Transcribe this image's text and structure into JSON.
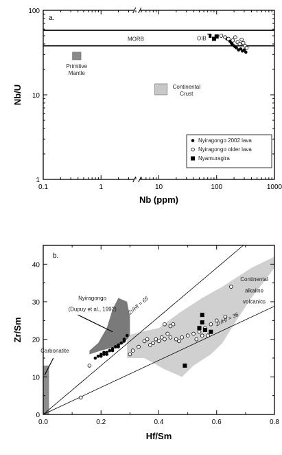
{
  "chart_data": [
    {
      "panel": "a.",
      "type": "scatter",
      "x_scale": "log",
      "y_scale": "log",
      "xlabel": "Nb (ppm)",
      "ylabel": "Nb/U",
      "xlim": [
        0.1,
        1000
      ],
      "ylim": [
        1,
        100
      ],
      "x_ticks": [
        "0.1",
        "1",
        "10",
        "100",
        "1000"
      ],
      "y_ticks": [
        "1",
        "10",
        "100"
      ],
      "bands": [
        {
          "label": "MORB",
          "y_range": [
            38,
            58
          ]
        }
      ],
      "regions": [
        {
          "label": "Primitive Mantle",
          "x_range": [
            0.32,
            0.45
          ],
          "y_range": [
            26,
            32
          ],
          "color": "#8a8a8a"
        },
        {
          "label": "Continental Crust",
          "x_range": [
            8.5,
            14
          ],
          "y_range": [
            10,
            13.5
          ],
          "color": "#c8c8c8"
        }
      ],
      "annotations": [
        {
          "text": "MORB",
          "x": 4,
          "y": 46
        },
        {
          "text": "OIB",
          "x": 55,
          "y": 47
        }
      ],
      "legend": {
        "placement": "bottom-right",
        "entries": [
          {
            "label": "Nyiragongo 2002 lava",
            "marker": "filled-circle"
          },
          {
            "label": "Nyiragongo older lava",
            "marker": "open-circle"
          },
          {
            "label": "Nyamuragira",
            "marker": "filled-square"
          }
        ]
      },
      "series": [
        {
          "name": "Nyiragongo 2002 lava",
          "marker": "filled-circle",
          "x": [
            150,
            170,
            185,
            200,
            220,
            240,
            260,
            280,
            300,
            320,
            180,
            210
          ],
          "y": [
            46,
            43,
            40,
            38,
            36,
            34,
            35,
            33,
            34,
            32,
            41,
            37
          ]
        },
        {
          "name": "Nyiragongo older lava",
          "marker": "open-circle",
          "x": [
            120,
            140,
            160,
            190,
            230,
            250,
            270,
            290,
            310,
            330,
            210
          ],
          "y": [
            50,
            48,
            46,
            44,
            42,
            40,
            45,
            41,
            38,
            36,
            48
          ]
        },
        {
          "name": "Nyamuragira",
          "marker": "filled-square",
          "x": [
            60,
            75,
            90,
            100
          ],
          "y": [
            48,
            50,
            46,
            49
          ]
        }
      ]
    },
    {
      "panel": "b.",
      "type": "scatter",
      "xlabel": "Hf/Sm",
      "ylabel": "Zr/Sm",
      "xlim": [
        0,
        0.8
      ],
      "ylim": [
        0,
        45
      ],
      "x_ticks": [
        "0.0",
        "0.2",
        "0.4",
        "0.6",
        "0.8"
      ],
      "y_ticks": [
        "0",
        "10",
        "20",
        "30",
        "40"
      ],
      "lines": [
        {
          "label": "Zr/Hf = 65",
          "slope": 65
        },
        {
          "label": "Zr/Hf = 36",
          "slope": 36
        }
      ],
      "regions": [
        {
          "label": "Carbonatite",
          "color": "#8c8c8c",
          "points": [
            [
              0,
              0
            ],
            [
              0.02,
              0
            ],
            [
              0.02,
              13
            ],
            [
              0,
              13
            ]
          ]
        },
        {
          "label": "Nyiragongo (Dupuy et al., 1992)",
          "color": "#7a7a7a",
          "points": [
            [
              0.16,
              16
            ],
            [
              0.2,
              17
            ],
            [
              0.25,
              18
            ],
            [
              0.28,
              19
            ],
            [
              0.3,
              21
            ],
            [
              0.3,
              26
            ],
            [
              0.29,
              30
            ],
            [
              0.26,
              31
            ],
            [
              0.24,
              28
            ],
            [
              0.22,
              23
            ],
            [
              0.19,
              19
            ],
            [
              0.16,
              17
            ]
          ]
        },
        {
          "label": "Continental alkaline volcanics",
          "color": "#d0d0d0",
          "points": [
            [
              0.29,
              15
            ],
            [
              0.35,
              15
            ],
            [
              0.42,
              12
            ],
            [
              0.48,
              10
            ],
            [
              0.52,
              13
            ],
            [
              0.58,
              16
            ],
            [
              0.62,
              19
            ],
            [
              0.66,
              24
            ],
            [
              0.72,
              31
            ],
            [
              0.78,
              37
            ],
            [
              0.8,
              39
            ],
            [
              0.8,
              42
            ],
            [
              0.72,
              39
            ],
            [
              0.62,
              34
            ],
            [
              0.55,
              31
            ],
            [
              0.47,
              27
            ],
            [
              0.4,
              23
            ],
            [
              0.34,
              22
            ],
            [
              0.29,
              21
            ]
          ]
        }
      ],
      "region_labels": [
        {
          "text": "Nyiragongo",
          "x": 0.17,
          "y": 30.5
        },
        {
          "text": "(Dupuy et al., 1992)",
          "x": 0.17,
          "y": 27.5
        },
        {
          "text": "Carbonatite",
          "x": 0.04,
          "y": 16.5
        },
        {
          "text": "Continental",
          "x": 0.73,
          "y": 35.5
        },
        {
          "text": "alkaline",
          "x": 0.73,
          "y": 32.5
        },
        {
          "text": "volcanics",
          "x": 0.73,
          "y": 29.5
        }
      ],
      "annotations": [
        {
          "text": "Zr/Hf = 65",
          "x": 0.3,
          "y": 26.5
        },
        {
          "text": "Zr/Hf = 36",
          "x": 0.6,
          "y": 23.5
        }
      ],
      "series": [
        {
          "name": "Nyiragongo 2002 lava",
          "marker": "filled-circle",
          "x": [
            0.18,
            0.19,
            0.2,
            0.21,
            0.22,
            0.23,
            0.24,
            0.25,
            0.26,
            0.27,
            0.28,
            0.29,
            0.2,
            0.22,
            0.24,
            0.26,
            0.28,
            0.21,
            0.23,
            0.25
          ],
          "y": [
            15,
            15.5,
            16,
            16,
            16.5,
            17,
            17.5,
            18,
            18.5,
            19,
            20,
            21,
            15.5,
            16,
            17,
            18,
            19.5,
            16.5,
            17,
            18
          ]
        },
        {
          "name": "Nyiragongo older lava",
          "marker": "open-circle",
          "x": [
            0.13,
            0.16,
            0.3,
            0.33,
            0.35,
            0.37,
            0.38,
            0.39,
            0.4,
            0.41,
            0.42,
            0.43,
            0.44,
            0.45,
            0.46,
            0.47,
            0.48,
            0.5,
            0.52,
            0.54,
            0.56,
            0.57,
            0.58,
            0.6,
            0.63,
            0.65,
            0.42,
            0.44,
            0.36,
            0.31,
            0.53,
            0.55
          ],
          "y": [
            4.5,
            13,
            16,
            18,
            19.5,
            18.5,
            19,
            20,
            19.5,
            20.5,
            20,
            21.5,
            20.5,
            24,
            20,
            19.5,
            20.5,
            21,
            21.5,
            22,
            23,
            21,
            24,
            25,
            26,
            34,
            24,
            23.5,
            20,
            17,
            20,
            21
          ]
        },
        {
          "name": "Nyamuragira",
          "marker": "filled-square",
          "x": [
            0.49,
            0.54,
            0.55,
            0.55,
            0.56,
            0.58
          ],
          "y": [
            13,
            23,
            24.5,
            26.5,
            22.5,
            22
          ]
        }
      ]
    }
  ]
}
